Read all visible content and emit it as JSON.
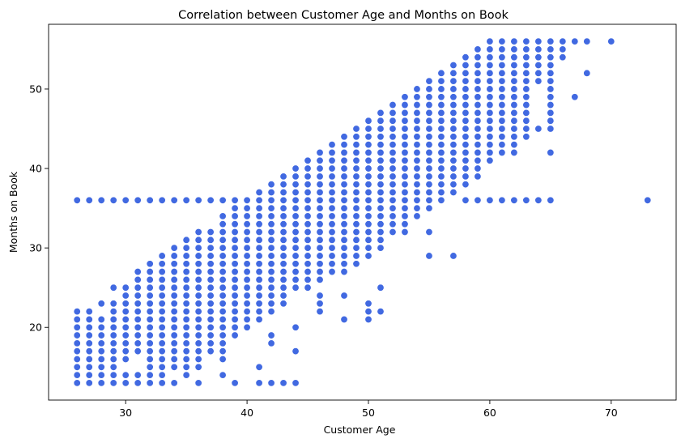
{
  "chart_data": {
    "type": "scatter",
    "title": "Correlation between Customer Age and Months on Book",
    "xlabel": "Customer Age",
    "ylabel": "Months on Book",
    "xlim": [
      23.65,
      75.35
    ],
    "ylim": [
      10.85,
      58.15
    ],
    "xticks": [
      30,
      40,
      50,
      60,
      70
    ],
    "yticks": [
      20,
      30,
      40,
      50
    ],
    "grid": false,
    "color": "#4169e1",
    "series": [
      {
        "ranges": [
          [
            26,
            13,
            22
          ],
          [
            26,
            36,
            36
          ],
          [
            27,
            13,
            22
          ],
          [
            27,
            36,
            36
          ],
          [
            28,
            13,
            21
          ],
          [
            28,
            23,
            23
          ],
          [
            28,
            36,
            36
          ],
          [
            29,
            13,
            23
          ],
          [
            29,
            25,
            25
          ],
          [
            29,
            36,
            36
          ],
          [
            30,
            13,
            14
          ],
          [
            30,
            16,
            25
          ],
          [
            30,
            36,
            36
          ],
          [
            31,
            13,
            14
          ],
          [
            31,
            17,
            27
          ],
          [
            31,
            36,
            36
          ],
          [
            32,
            13,
            28
          ],
          [
            32,
            36,
            36
          ],
          [
            33,
            13,
            29
          ],
          [
            33,
            36,
            36
          ],
          [
            34,
            13,
            13
          ],
          [
            34,
            15,
            30
          ],
          [
            34,
            36,
            36
          ],
          [
            35,
            14,
            31
          ],
          [
            35,
            36,
            36
          ],
          [
            36,
            13,
            13
          ],
          [
            36,
            15,
            32
          ],
          [
            36,
            36,
            36
          ],
          [
            37,
            17,
            32
          ],
          [
            37,
            36,
            36
          ],
          [
            38,
            14,
            14
          ],
          [
            38,
            16,
            34
          ],
          [
            38,
            36,
            36
          ],
          [
            39,
            13,
            13
          ],
          [
            39,
            19,
            36
          ],
          [
            40,
            20,
            36
          ],
          [
            41,
            13,
            13
          ],
          [
            41,
            15,
            15
          ],
          [
            41,
            21,
            37
          ],
          [
            42,
            13,
            13
          ],
          [
            42,
            18,
            19
          ],
          [
            42,
            22,
            38
          ],
          [
            43,
            13,
            13
          ],
          [
            43,
            23,
            39
          ],
          [
            44,
            13,
            13
          ],
          [
            44,
            17,
            17
          ],
          [
            44,
            20,
            20
          ],
          [
            44,
            25,
            40
          ],
          [
            45,
            25,
            41
          ],
          [
            46,
            22,
            24
          ],
          [
            46,
            26,
            42
          ],
          [
            47,
            27,
            43
          ],
          [
            48,
            21,
            21
          ],
          [
            48,
            24,
            24
          ],
          [
            48,
            27,
            44
          ],
          [
            49,
            28,
            45
          ],
          [
            50,
            21,
            23
          ],
          [
            50,
            29,
            46
          ],
          [
            51,
            22,
            22
          ],
          [
            51,
            25,
            25
          ],
          [
            51,
            30,
            47
          ],
          [
            52,
            32,
            48
          ],
          [
            53,
            32,
            49
          ],
          [
            54,
            34,
            50
          ],
          [
            55,
            29,
            29
          ],
          [
            55,
            32,
            32
          ],
          [
            55,
            35,
            51
          ],
          [
            56,
            36,
            52
          ],
          [
            57,
            29,
            29
          ],
          [
            57,
            37,
            53
          ],
          [
            58,
            36,
            36
          ],
          [
            58,
            38,
            54
          ],
          [
            59,
            36,
            36
          ],
          [
            59,
            39,
            55
          ],
          [
            60,
            36,
            36
          ],
          [
            60,
            41,
            56
          ],
          [
            61,
            36,
            36
          ],
          [
            61,
            42,
            56
          ],
          [
            62,
            36,
            36
          ],
          [
            62,
            42,
            56
          ],
          [
            63,
            36,
            36
          ],
          [
            63,
            44,
            56
          ],
          [
            64,
            36,
            36
          ],
          [
            64,
            45,
            45
          ],
          [
            64,
            51,
            56
          ],
          [
            65,
            36,
            36
          ],
          [
            65,
            42,
            42
          ],
          [
            65,
            45,
            56
          ],
          [
            66,
            54,
            56
          ],
          [
            67,
            49,
            49
          ],
          [
            67,
            56,
            56
          ],
          [
            68,
            52,
            52
          ],
          [
            68,
            56,
            56
          ],
          [
            70,
            56,
            56
          ],
          [
            73,
            36,
            36
          ]
        ]
      }
    ]
  }
}
